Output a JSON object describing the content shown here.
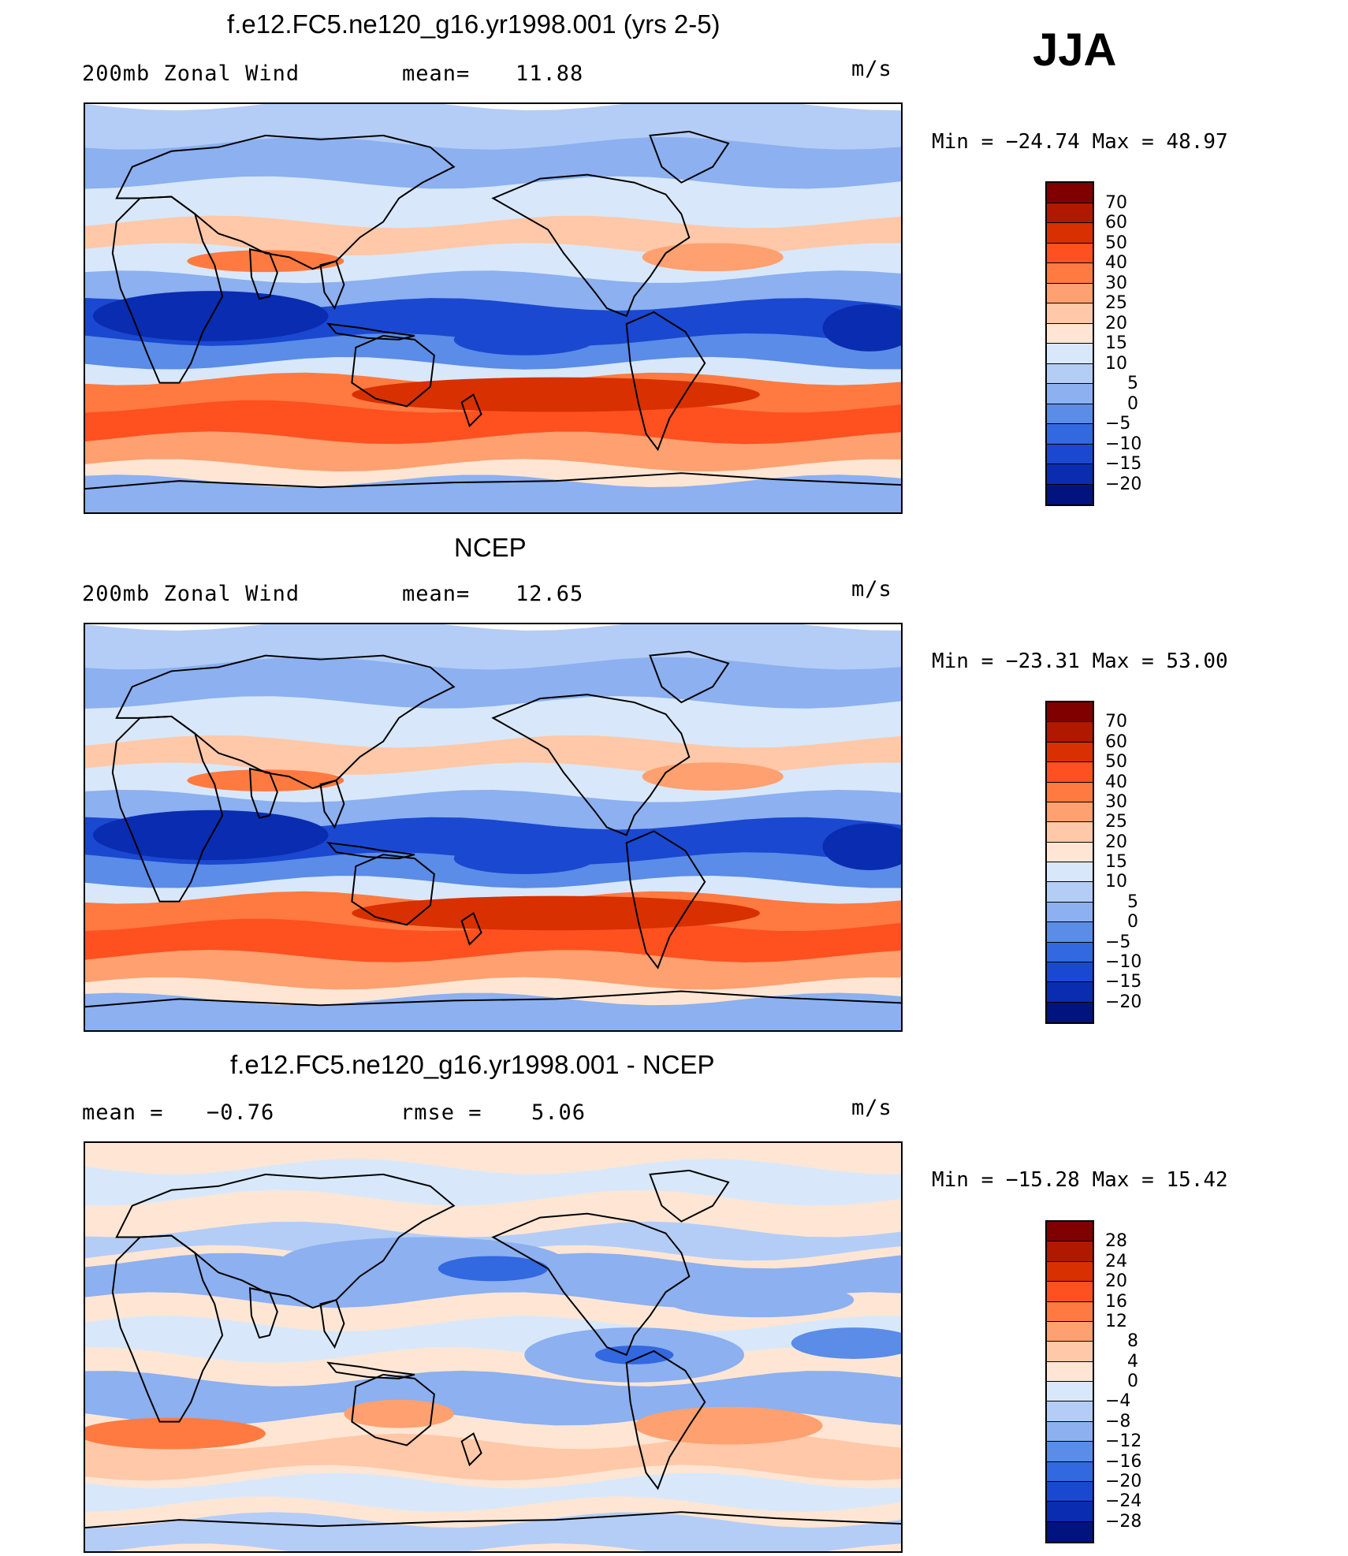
{
  "season": "JJA",
  "panels": [
    {
      "title": "f.e12.FC5.ne120_g16.yr1998.001 (yrs 2-5)",
      "left_label": "200mb Zonal Wind",
      "stat_label": "mean=",
      "stat_value": "11.88",
      "units": "m/s",
      "minmax": "Min = −24.74 Max =  48.97"
    },
    {
      "title": "NCEP",
      "left_label": "200mb Zonal Wind",
      "stat_label": "mean=",
      "stat_value": "12.65",
      "units": "m/s",
      "minmax": "Min = −23.31 Max =  53.00"
    },
    {
      "title": "f.e12.FC5.ne120_g16.yr1998.001 - NCEP",
      "left_label": "mean =",
      "left_value": "−0.76",
      "stat_label": "rmse =",
      "stat_value": "5.06",
      "units": "m/s",
      "minmax": "Min = −15.28 Max =  15.42"
    }
  ],
  "colorbars": {
    "field": {
      "colors": [
        "#800000",
        "#b01800",
        "#d83000",
        "#ff5020",
        "#ff7a40",
        "#ffa070",
        "#ffc8a8",
        "#ffe6d4",
        "#d8e8fa",
        "#b4cdf6",
        "#8cb0f0",
        "#5a8ce8",
        "#3268e0",
        "#1a48d0",
        "#0a2cb0",
        "#00137e"
      ],
      "labels": [
        "70",
        "60",
        "50",
        "40",
        "30",
        "25",
        "20",
        "15",
        "10",
        "5",
        "0",
        "−5",
        "−10",
        "−15",
        "−20"
      ]
    },
    "diff": {
      "colors": [
        "#800000",
        "#b01800",
        "#d83000",
        "#ff5020",
        "#ff7a40",
        "#ffa070",
        "#ffc8a8",
        "#ffe6d4",
        "#d8e8fa",
        "#b4cdf6",
        "#8cb0f0",
        "#5a8ce8",
        "#3268e0",
        "#1a48d0",
        "#0a2cb0",
        "#00137e"
      ],
      "labels": [
        "28",
        "24",
        "20",
        "16",
        "12",
        "8",
        "4",
        "0",
        "−4",
        "−8",
        "−12",
        "−16",
        "−20",
        "−24",
        "−28"
      ]
    }
  }
}
